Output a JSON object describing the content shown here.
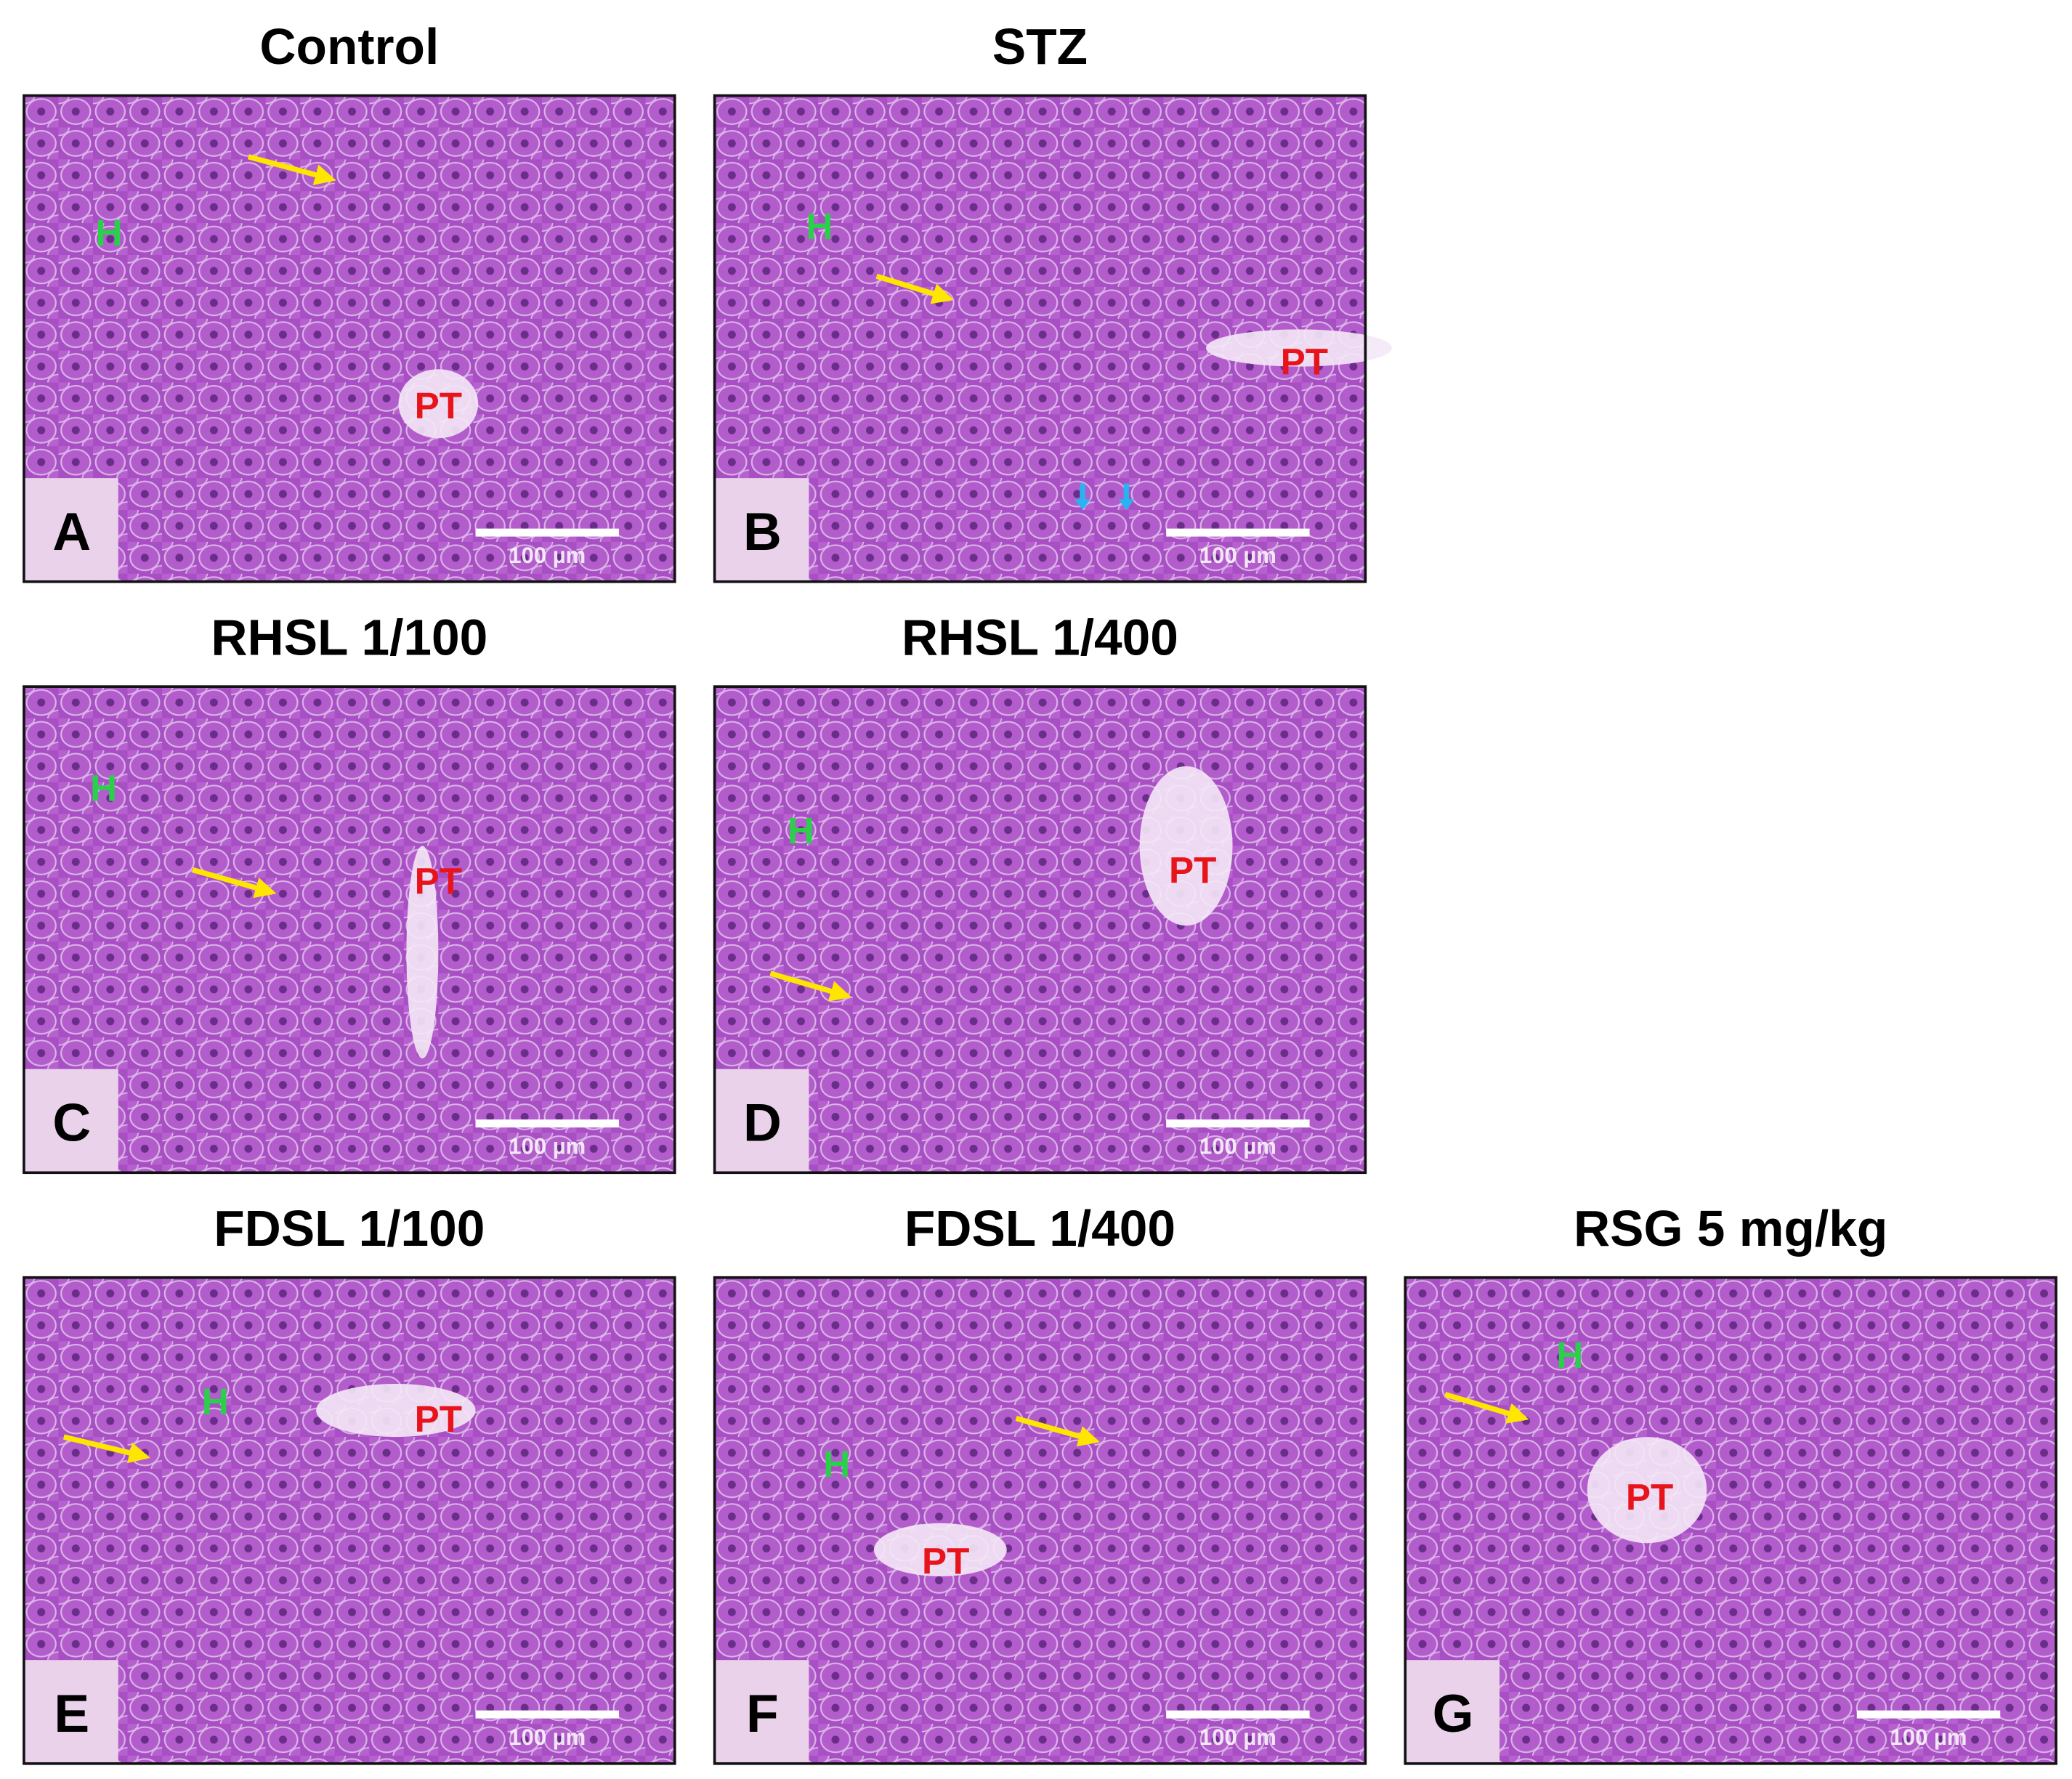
{
  "panels": [
    {
      "title": "Control",
      "letter": "A",
      "labels": [
        "H",
        "PT"
      ],
      "scale_bar": "100 µm"
    },
    {
      "title": "STZ",
      "letter": "B",
      "labels": [
        "H",
        "PT"
      ],
      "scale_bar": "100 µm"
    },
    {
      "title": "RHSL 1/100",
      "letter": "C",
      "labels": [
        "H",
        "PT"
      ],
      "scale_bar": "100 µm"
    },
    {
      "title": "RHSL 1/400",
      "letter": "D",
      "labels": [
        "H",
        "PT"
      ],
      "scale_bar": "100 µm"
    },
    {
      "title": "FDSL 1/100",
      "letter": "E",
      "labels": [
        "H",
        "PT"
      ],
      "scale_bar": "100 µm"
    },
    {
      "title": "FDSL 1/400",
      "letter": "F",
      "labels": [
        "H",
        "PT"
      ],
      "scale_bar": "100 µm"
    },
    {
      "title": "RSG 5 mg/kg",
      "letter": "G",
      "labels": [
        "H",
        "PT"
      ],
      "scale_bar": "100 µm"
    }
  ]
}
